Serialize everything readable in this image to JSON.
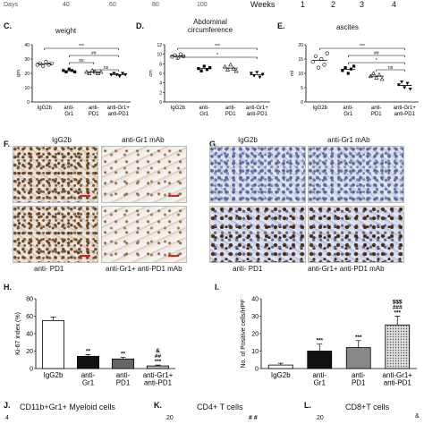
{
  "top_axis": {
    "days_label": "Days",
    "days_ticks": [
      "40",
      "60",
      "80",
      "100"
    ],
    "weeks_label": "Weeks",
    "weeks_ticks": [
      "1",
      "2",
      "3",
      "4"
    ]
  },
  "groups": [
    "IgG2b",
    "anti-Gr1",
    "anti-PD1",
    "anti-Gr1+anti-PD1"
  ],
  "panels": {
    "C": {
      "letter": "C.",
      "title": "weight",
      "ylabel": "gm",
      "sig": [
        "***",
        "##",
        "ns",
        "ns"
      ]
    },
    "D": {
      "letter": "D.",
      "title": "Abdominal circumference",
      "ylabel": "cm",
      "sig": [
        "***",
        "*"
      ]
    },
    "E": {
      "letter": "E.",
      "title": "ascites",
      "ylabel": "ml",
      "sig": [
        "***",
        "##",
        "*",
        "ns"
      ]
    },
    "F": {
      "letter": "F.",
      "top_left": "IgG2b",
      "top_right": "anti-Gr1 mAb",
      "bottom_left": "anti- PD1",
      "bottom_right": "anti-Gr1+ anti-PD1 mAb"
    },
    "G": {
      "letter": "G.",
      "top_left": "IgG2b",
      "top_right": "anti-Gr1 mAb",
      "bottom_left": "anti- PD1",
      "bottom_right": "anti-Gr1+ anti-PD1 mAb"
    },
    "H": {
      "letter": "H.",
      "ylabel": "Ki-67 index (%)",
      "sig": [
        "**",
        "**",
        "&",
        "##",
        "***"
      ]
    },
    "I": {
      "letter": "I.",
      "ylabel": "No. of Positive cells/HPF",
      "sig": [
        "***",
        "***",
        "$$$",
        "###",
        "***"
      ]
    },
    "J": {
      "letter": "J.",
      "title": "CD11b+Gr1+ Myeloid cells"
    },
    "K": {
      "letter": "K.",
      "title": "CD4+ T cells"
    },
    "L": {
      "letter": "L.",
      "title": "CD8+T cells"
    }
  },
  "bottom_fragments": {
    "j_tick": "4",
    "k_tick": "20",
    "k_sig": "# #",
    "l_tick": "20",
    "l_sig": "&"
  },
  "chart_data": [
    {
      "type": "scatter",
      "title": "weight",
      "ylabel": "gm",
      "categories": [
        "IgG2b",
        "anti-Gr1",
        "anti-PD1",
        "anti-Gr1+anti-PD1"
      ],
      "ylim": [
        0,
        40
      ],
      "yticks": [
        0,
        10,
        20,
        30,
        40
      ],
      "series": [
        {
          "values": [
            [
              26,
              27,
              25,
              28,
              26,
              27
            ],
            [
              22,
              21,
              23,
              22,
              21
            ],
            [
              21,
              20,
              22,
              21,
              20,
              21
            ],
            [
              19,
              20,
              19,
              18,
              20,
              19
            ]
          ]
        }
      ],
      "means": [
        26.5,
        21.8,
        20.8,
        19.2
      ]
    },
    {
      "type": "scatter",
      "title": "Abdominal circumference",
      "ylabel": "cm",
      "categories": [
        "IgG2b",
        "anti-Gr1",
        "anti-PD1",
        "anti-Gr1+anti-PD1"
      ],
      "ylim": [
        0,
        12
      ],
      "yticks": [
        0,
        2,
        4,
        6,
        8,
        10,
        12
      ],
      "series": [
        {
          "values": [
            [
              9.5,
              9.8,
              9.2,
              10,
              9.6
            ],
            [
              7,
              6.5,
              7.5,
              6.8,
              7.2
            ],
            [
              7.4,
              6.8,
              7.8,
              7,
              6.5
            ],
            [
              6,
              5.5,
              6.2,
              5.2,
              5.8
            ]
          ]
        }
      ],
      "means": [
        9.6,
        7.0,
        7.1,
        5.7
      ]
    },
    {
      "type": "scatter",
      "title": "ascites",
      "ylabel": "ml",
      "categories": [
        "IgG2b",
        "anti-Gr1",
        "anti-PD1",
        "anti-Gr1+anti-PD1"
      ],
      "ylim": [
        0,
        20
      ],
      "yticks": [
        0,
        5,
        10,
        15,
        20
      ],
      "series": [
        {
          "values": [
            [
              14,
              16,
              12,
              15,
              13,
              17
            ],
            [
              11,
              12,
              10,
              11.5,
              12.5
            ],
            [
              9,
              10,
              8.5,
              9.5,
              8
            ],
            [
              6,
              7,
              5,
              6.5,
              4.5
            ]
          ]
        }
      ],
      "means": [
        14.5,
        11.4,
        9.0,
        5.8
      ]
    },
    {
      "type": "bar",
      "ylabel": "Ki-67 index (%)",
      "categories": [
        "IgG2b",
        "anti-Gr1",
        "anti-PD1",
        "anti-Gr1+ anti-PD1"
      ],
      "values": [
        55,
        14,
        11,
        3
      ],
      "errors": [
        4,
        2,
        2,
        1
      ],
      "ylim": [
        0,
        80
      ],
      "yticks": [
        0,
        20,
        40,
        60,
        80
      ]
    },
    {
      "type": "bar",
      "ylabel": "No. of Positive cells/HPF",
      "categories": [
        "IgG2b",
        "anti-Gr1",
        "anti-PD1",
        "anti-Gr1+ anti-PD1"
      ],
      "values": [
        2,
        10,
        12,
        25
      ],
      "errors": [
        1,
        4,
        4,
        5
      ],
      "ylim": [
        0,
        40
      ],
      "yticks": [
        0,
        10,
        20,
        30,
        40
      ]
    }
  ]
}
